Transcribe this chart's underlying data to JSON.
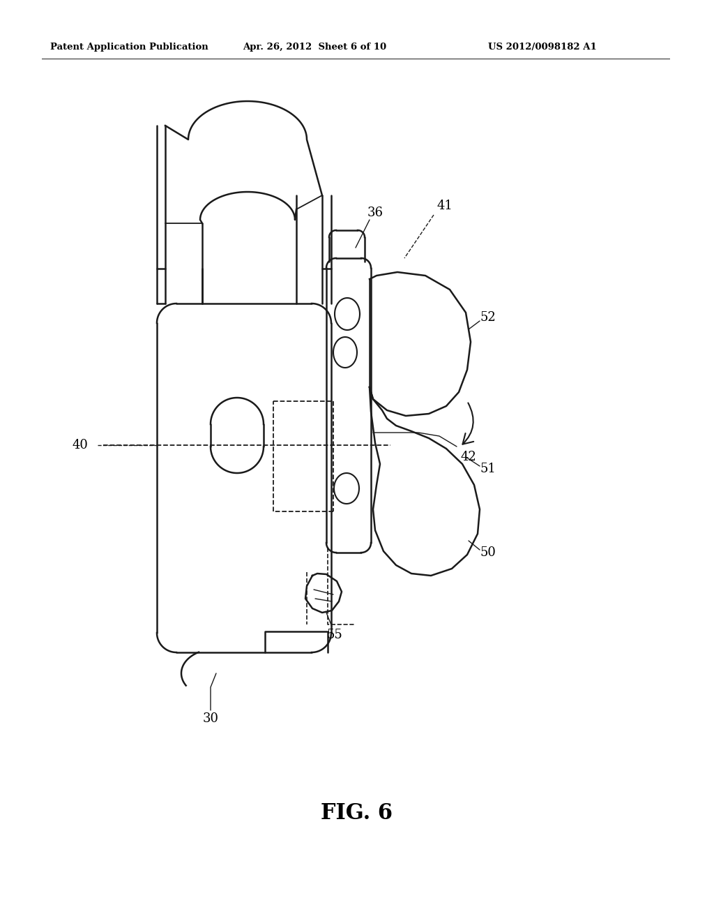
{
  "bg_color": "#ffffff",
  "lc": "#1a1a1a",
  "lw": 1.8,
  "lw_thin": 1.0,
  "header_left": "Patent Application Publication",
  "header_center": "Apr. 26, 2012  Sheet 6 of 10",
  "header_right": "US 2012/0098182 A1",
  "fig_label": "FIG. 6",
  "label_fs": 13
}
